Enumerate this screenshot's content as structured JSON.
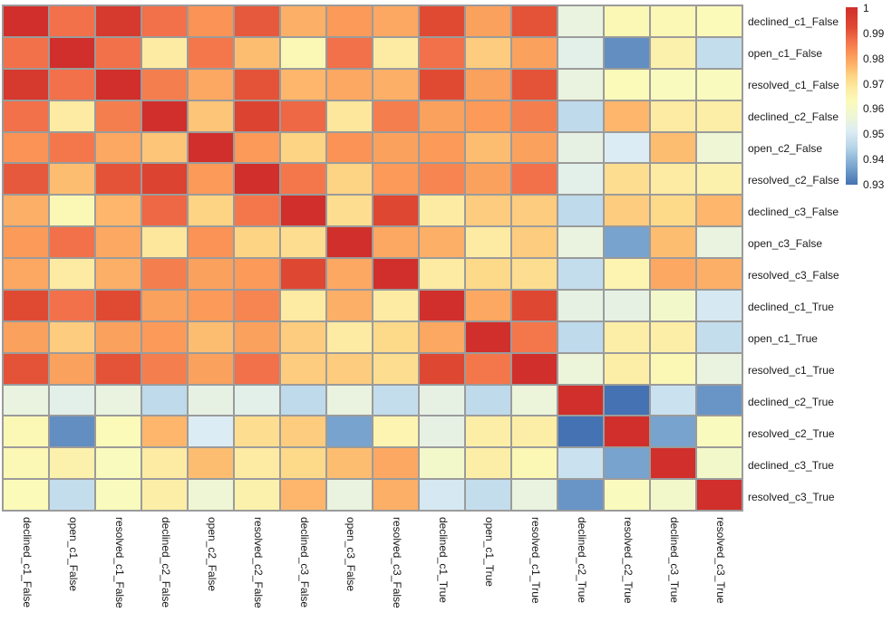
{
  "figure": {
    "background_color": "#ffffff",
    "grid_line_color": "#9b9b9b",
    "label_color": "#1a1a1a"
  },
  "chart_data": {
    "type": "heatmap",
    "title": "",
    "xlabel": "",
    "ylabel": "",
    "grid": true,
    "legend_position": "colorbar-top-right",
    "labels": [
      "declined_c1_False",
      "open_c1_False",
      "resolved_c1_False",
      "declined_c2_False",
      "open_c2_False",
      "resolved_c2_False",
      "declined_c3_False",
      "open_c3_False",
      "resolved_c3_False",
      "declined_c1_True",
      "open_c1_True",
      "resolved_c1_True",
      "declined_c2_True",
      "resolved_c2_True",
      "declined_c3_True",
      "resolved_c3_True"
    ],
    "matrix": [
      [
        1.0,
        0.987,
        0.997,
        0.987,
        0.982,
        0.99,
        0.978,
        0.981,
        0.979,
        0.992,
        0.98,
        0.991,
        0.955,
        0.964,
        0.964,
        0.963
      ],
      [
        0.987,
        1.0,
        0.987,
        0.968,
        0.986,
        0.976,
        0.964,
        0.987,
        0.968,
        0.987,
        0.974,
        0.98,
        0.953,
        0.934,
        0.966,
        0.947
      ],
      [
        0.997,
        0.987,
        1.0,
        0.985,
        0.979,
        0.991,
        0.977,
        0.979,
        0.978,
        0.992,
        0.98,
        0.991,
        0.955,
        0.963,
        0.962,
        0.962
      ],
      [
        0.987,
        0.968,
        0.985,
        1.0,
        0.975,
        0.994,
        0.988,
        0.969,
        0.985,
        0.98,
        0.981,
        0.985,
        0.946,
        0.977,
        0.968,
        0.967
      ],
      [
        0.982,
        0.986,
        0.979,
        0.975,
        1.0,
        0.981,
        0.973,
        0.982,
        0.98,
        0.981,
        0.976,
        0.98,
        0.954,
        0.951,
        0.976,
        0.957
      ],
      [
        0.99,
        0.976,
        0.991,
        0.994,
        0.981,
        1.0,
        0.986,
        0.973,
        0.981,
        0.984,
        0.98,
        0.987,
        0.953,
        0.971,
        0.968,
        0.966
      ],
      [
        0.978,
        0.964,
        0.977,
        0.988,
        0.973,
        0.986,
        1.0,
        0.971,
        0.993,
        0.968,
        0.974,
        0.974,
        0.946,
        0.974,
        0.972,
        0.977
      ],
      [
        0.981,
        0.987,
        0.979,
        0.969,
        0.982,
        0.973,
        0.971,
        1.0,
        0.979,
        0.978,
        0.968,
        0.974,
        0.955,
        0.937,
        0.976,
        0.955
      ],
      [
        0.979,
        0.968,
        0.978,
        0.985,
        0.98,
        0.981,
        0.993,
        0.979,
        1.0,
        0.968,
        0.972,
        0.971,
        0.947,
        0.965,
        0.979,
        0.978
      ],
      [
        0.992,
        0.987,
        0.992,
        0.98,
        0.981,
        0.984,
        0.968,
        0.978,
        0.968,
        1.0,
        0.979,
        0.993,
        0.954,
        0.954,
        0.959,
        0.95
      ],
      [
        0.98,
        0.974,
        0.98,
        0.981,
        0.976,
        0.98,
        0.974,
        0.968,
        0.972,
        0.979,
        1.0,
        0.986,
        0.946,
        0.967,
        0.967,
        0.947
      ],
      [
        0.991,
        0.98,
        0.991,
        0.985,
        0.98,
        0.987,
        0.974,
        0.974,
        0.971,
        0.993,
        0.986,
        1.0,
        0.956,
        0.967,
        0.964,
        0.955
      ],
      [
        0.955,
        0.953,
        0.955,
        0.946,
        0.954,
        0.953,
        0.946,
        0.955,
        0.947,
        0.954,
        0.946,
        0.956,
        1.0,
        0.93,
        0.948,
        0.935
      ],
      [
        0.964,
        0.934,
        0.963,
        0.977,
        0.951,
        0.971,
        0.974,
        0.937,
        0.965,
        0.954,
        0.967,
        0.967,
        0.93,
        1.0,
        0.937,
        0.962
      ],
      [
        0.964,
        0.966,
        0.962,
        0.968,
        0.976,
        0.968,
        0.972,
        0.976,
        0.979,
        0.959,
        0.967,
        0.964,
        0.948,
        0.937,
        1.0,
        0.959
      ],
      [
        0.963,
        0.947,
        0.962,
        0.967,
        0.957,
        0.966,
        0.977,
        0.955,
        0.978,
        0.95,
        0.947,
        0.955,
        0.935,
        0.962,
        0.959,
        1.0
      ]
    ],
    "colorbar": {
      "min": 0.93,
      "max": 1.0,
      "tick_labels": [
        "1",
        "0.99",
        "0.98",
        "0.97",
        "0.96",
        "0.95",
        "0.94",
        "0.93"
      ],
      "tick_values": [
        1.0,
        0.99,
        0.98,
        0.97,
        0.96,
        0.95,
        0.94,
        0.93
      ]
    },
    "colormap": {
      "name": "RdYlBu_r",
      "stops": [
        [
          0.93,
          "#4472b2"
        ],
        [
          0.9375,
          "#7ca7d0"
        ],
        [
          0.945,
          "#b8d6e9"
        ],
        [
          0.951,
          "#dcecf4"
        ],
        [
          0.955,
          "#e9f3df"
        ],
        [
          0.959,
          "#f3f8cb"
        ],
        [
          0.963,
          "#fbfab9"
        ],
        [
          0.968,
          "#fdeba3"
        ],
        [
          0.9725,
          "#fdd787"
        ],
        [
          0.977,
          "#fdb66b"
        ],
        [
          0.982,
          "#fa9355"
        ],
        [
          0.987,
          "#f2704a"
        ],
        [
          0.992,
          "#e04a33"
        ],
        [
          1.0,
          "#d02f2b"
        ]
      ]
    }
  }
}
